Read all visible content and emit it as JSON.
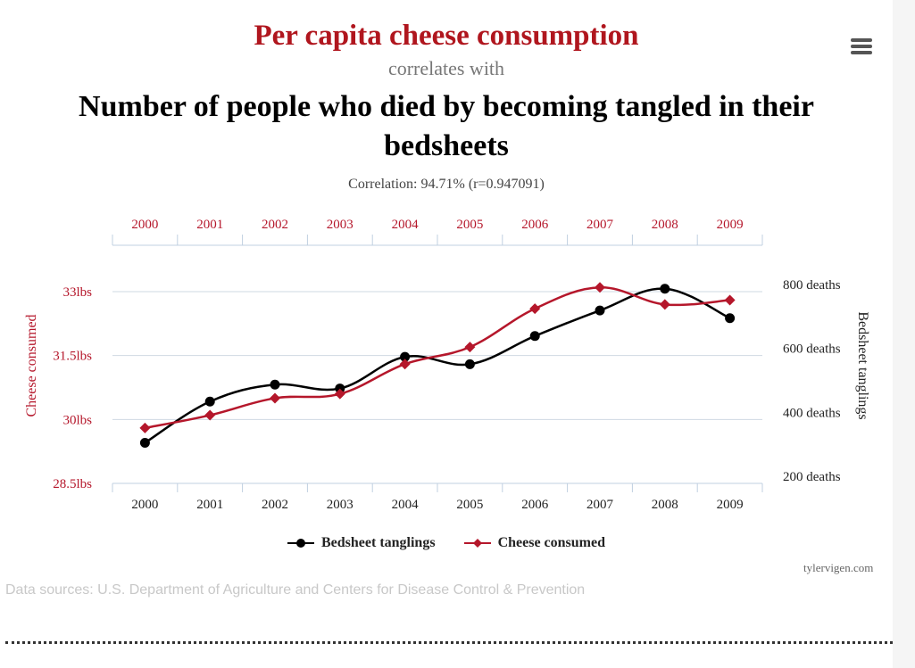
{
  "header": {
    "title_main": "Per capita cheese consumption",
    "title_link": "correlates with",
    "title_second": "Number of people who died by becoming tangled in their bedsheets",
    "correlation": "Correlation: 94.71% (r=0.947091)"
  },
  "menu_icon": "hamburger-menu-icon",
  "chart_data": {
    "type": "line",
    "categories": [
      "2000",
      "2001",
      "2002",
      "2003",
      "2004",
      "2005",
      "2006",
      "2007",
      "2008",
      "2009"
    ],
    "left_axis": {
      "label": "Cheese consumed",
      "ticks": [
        "28.5lbs",
        "30lbs",
        "31.5lbs",
        "33lbs"
      ],
      "tick_values": [
        28.5,
        30,
        31.5,
        33
      ],
      "range": [
        28.5,
        33
      ]
    },
    "right_axis": {
      "label": "Bedsheet tanglings",
      "ticks": [
        "200 deaths",
        "400 deaths",
        "600 deaths",
        "800 deaths"
      ],
      "tick_values": [
        200,
        400,
        600,
        800
      ],
      "range": [
        200,
        800
      ]
    },
    "series": [
      {
        "name": "Bedsheet tanglings",
        "axis": "right",
        "color": "#000000",
        "marker": "circle",
        "values": [
          327,
          456,
          509,
          497,
          596,
          573,
          661,
          741,
          809,
          717
        ]
      },
      {
        "name": "Cheese consumed",
        "axis": "left",
        "color": "#b5172b",
        "marker": "diamond",
        "values": [
          29.8,
          30.1,
          30.5,
          30.6,
          31.3,
          31.7,
          32.6,
          33.1,
          32.7,
          32.8
        ]
      }
    ],
    "grid": true,
    "legend_position": "bottom"
  },
  "footer": {
    "credit": "tylervigen.com",
    "sources": "Data sources: U.S. Department of Agriculture and Centers for Disease Control & Prevention"
  }
}
